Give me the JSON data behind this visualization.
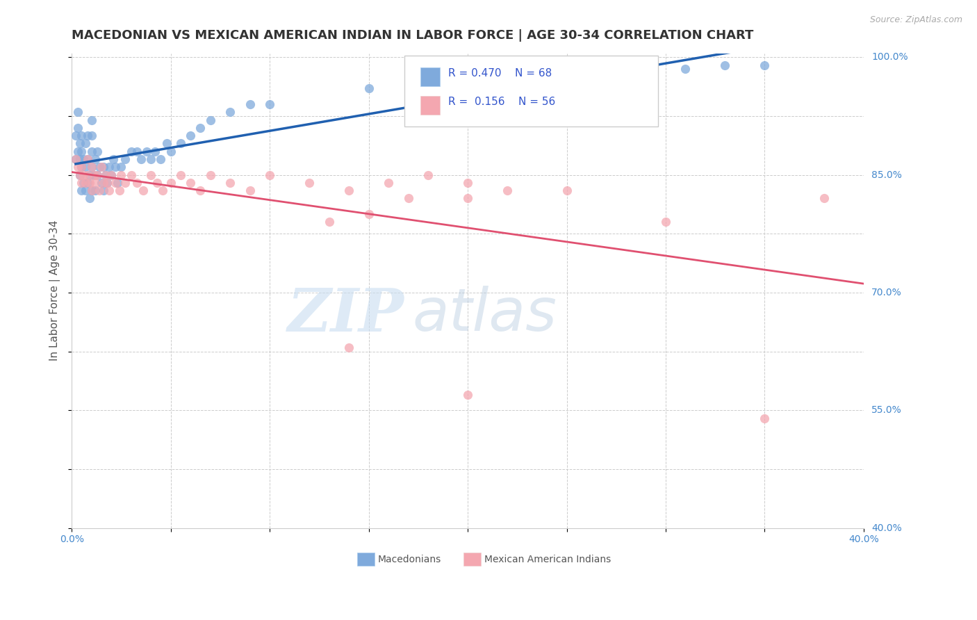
{
  "title": "MACEDONIAN VS MEXICAN AMERICAN INDIAN IN LABOR FORCE | AGE 30-34 CORRELATION CHART",
  "source": "Source: ZipAtlas.com",
  "ylabel": "In Labor Force | Age 30-34",
  "xlim": [
    0.0,
    0.4
  ],
  "ylim": [
    0.4,
    1.005
  ],
  "xticks": [
    0.0,
    0.05,
    0.1,
    0.15,
    0.2,
    0.25,
    0.3,
    0.35,
    0.4
  ],
  "xtick_labels": [
    "0.0%",
    "",
    "",
    "",
    "",
    "",
    "",
    "",
    "40.0%"
  ],
  "yticks": [
    0.4,
    0.475,
    0.55,
    0.625,
    0.7,
    0.775,
    0.85,
    0.925,
    1.0
  ],
  "ytick_labels": [
    "40.0%",
    "",
    "55.0%",
    "",
    "70.0%",
    "",
    "85.0%",
    "",
    "100.0%"
  ],
  "blue_R": 0.47,
  "blue_N": 68,
  "pink_R": 0.156,
  "pink_N": 56,
  "blue_color": "#7faadc",
  "pink_color": "#f4a7b0",
  "blue_line_color": "#2060b0",
  "pink_line_color": "#e05070",
  "legend_R_color": "#3355cc",
  "watermark_zip": "ZIP",
  "watermark_atlas": "atlas",
  "background_color": "#ffffff",
  "grid_color": "#cccccc",
  "title_fontsize": 13,
  "axis_label_fontsize": 11,
  "tick_fontsize": 10,
  "tick_color": "#4488cc",
  "blue_x": [
    0.002,
    0.002,
    0.003,
    0.003,
    0.003,
    0.004,
    0.004,
    0.004,
    0.005,
    0.005,
    0.005,
    0.005,
    0.006,
    0.006,
    0.007,
    0.007,
    0.007,
    0.008,
    0.008,
    0.008,
    0.009,
    0.009,
    0.01,
    0.01,
    0.01,
    0.01,
    0.01,
    0.011,
    0.012,
    0.012,
    0.013,
    0.013,
    0.014,
    0.015,
    0.016,
    0.016,
    0.017,
    0.018,
    0.019,
    0.02,
    0.021,
    0.022,
    0.023,
    0.025,
    0.027,
    0.03,
    0.033,
    0.035,
    0.038,
    0.04,
    0.042,
    0.045,
    0.048,
    0.05,
    0.055,
    0.06,
    0.065,
    0.07,
    0.08,
    0.09,
    0.1,
    0.15,
    0.2,
    0.25,
    0.28,
    0.31,
    0.33,
    0.35
  ],
  "blue_y": [
    0.87,
    0.9,
    0.88,
    0.91,
    0.93,
    0.85,
    0.87,
    0.89,
    0.83,
    0.86,
    0.88,
    0.9,
    0.84,
    0.87,
    0.83,
    0.86,
    0.89,
    0.84,
    0.87,
    0.9,
    0.82,
    0.85,
    0.83,
    0.86,
    0.88,
    0.9,
    0.92,
    0.85,
    0.83,
    0.87,
    0.85,
    0.88,
    0.86,
    0.84,
    0.83,
    0.86,
    0.85,
    0.84,
    0.86,
    0.85,
    0.87,
    0.86,
    0.84,
    0.86,
    0.87,
    0.88,
    0.88,
    0.87,
    0.88,
    0.87,
    0.88,
    0.87,
    0.89,
    0.88,
    0.89,
    0.9,
    0.91,
    0.92,
    0.93,
    0.94,
    0.94,
    0.96,
    0.97,
    0.975,
    0.98,
    0.985,
    0.99,
    0.99
  ],
  "pink_x": [
    0.002,
    0.003,
    0.004,
    0.005,
    0.005,
    0.006,
    0.007,
    0.008,
    0.008,
    0.009,
    0.01,
    0.01,
    0.011,
    0.012,
    0.013,
    0.014,
    0.015,
    0.016,
    0.017,
    0.018,
    0.019,
    0.02,
    0.022,
    0.024,
    0.025,
    0.027,
    0.03,
    0.033,
    0.036,
    0.04,
    0.043,
    0.046,
    0.05,
    0.055,
    0.06,
    0.065,
    0.07,
    0.08,
    0.09,
    0.1,
    0.12,
    0.14,
    0.16,
    0.18,
    0.2,
    0.13,
    0.15,
    0.17,
    0.2,
    0.22,
    0.25,
    0.3,
    0.14,
    0.2,
    0.35,
    0.38
  ],
  "pink_y": [
    0.87,
    0.86,
    0.85,
    0.84,
    0.86,
    0.85,
    0.84,
    0.85,
    0.87,
    0.84,
    0.83,
    0.86,
    0.85,
    0.84,
    0.85,
    0.83,
    0.86,
    0.84,
    0.85,
    0.84,
    0.83,
    0.85,
    0.84,
    0.83,
    0.85,
    0.84,
    0.85,
    0.84,
    0.83,
    0.85,
    0.84,
    0.83,
    0.84,
    0.85,
    0.84,
    0.83,
    0.85,
    0.84,
    0.83,
    0.85,
    0.84,
    0.83,
    0.84,
    0.85,
    0.84,
    0.79,
    0.8,
    0.82,
    0.82,
    0.83,
    0.83,
    0.79,
    0.63,
    0.57,
    0.54,
    0.82
  ]
}
